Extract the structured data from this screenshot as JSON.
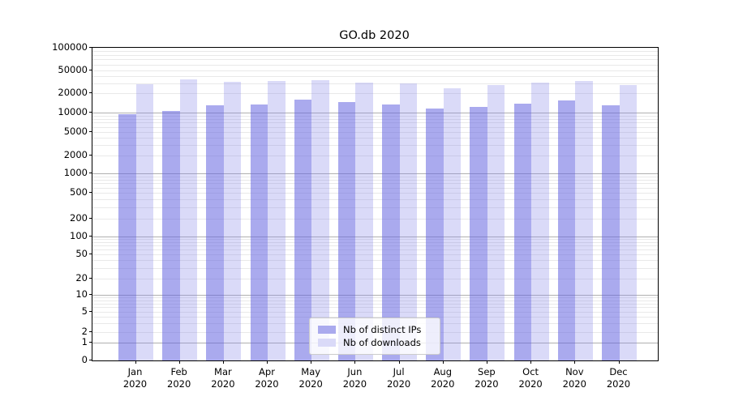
{
  "title": "GO.db 2020",
  "chart_data": {
    "type": "bar",
    "title": "GO.db 2020",
    "xlabel": "",
    "ylabel": "",
    "scale": "symlog",
    "grid": true,
    "legend_position": "lower center",
    "categories": [
      "Jan",
      "Feb",
      "Mar",
      "Apr",
      "May",
      "Jun",
      "Jul",
      "Aug",
      "Sep",
      "Oct",
      "Nov",
      "Dec"
    ],
    "x_year_label": "2020",
    "yticks": [
      0,
      1,
      2,
      5,
      10,
      20,
      50,
      100,
      200,
      500,
      1000,
      2000,
      5000,
      10000,
      20000,
      50000,
      100000
    ],
    "ylim": [
      0,
      100000
    ],
    "series": [
      {
        "name": "Nb of distinct IPs",
        "color": "#aaaaee",
        "values": [
          9400,
          10500,
          12900,
          13500,
          15900,
          14400,
          13400,
          11700,
          12200,
          13900,
          15300,
          13000
        ]
      },
      {
        "name": "Nb of downloads",
        "color": "#dadaf8",
        "values": [
          28600,
          34500,
          31300,
          33000,
          33800,
          30600,
          29600,
          24300,
          27800,
          30300,
          32400,
          27800
        ]
      }
    ]
  }
}
